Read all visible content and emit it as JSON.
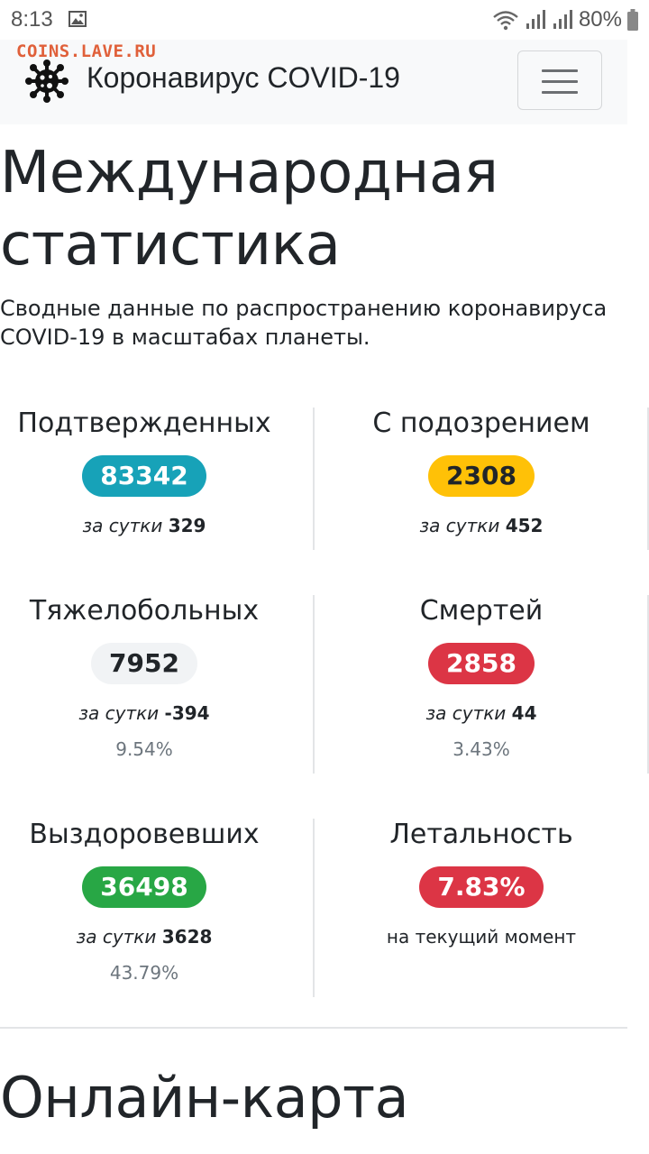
{
  "status_bar": {
    "time": "8:13",
    "battery": "80%"
  },
  "watermark": "COINS.LAVE.RU",
  "navbar": {
    "brand": "Коронавирус COVID-19"
  },
  "page": {
    "title_line1": "Международная",
    "title_line2": "статистика",
    "lead_line1": "Сводные данные по распространению коронавируса",
    "lead_line2": "COVID-19 в масштабах планеты."
  },
  "stats": {
    "confirmed": {
      "title": "Подтвержденных",
      "value": "83342",
      "delta_label": "за сутки",
      "delta": "329"
    },
    "suspected": {
      "title": "С подозрением",
      "value": "2308",
      "delta_label": "за сутки",
      "delta": "452"
    },
    "severe": {
      "title": "Тяжелобольных",
      "value": "7952",
      "delta_label": "за сутки",
      "delta": "-394",
      "percent": "9.54%"
    },
    "deaths": {
      "title": "Смертей",
      "value": "2858",
      "delta_label": "за сутки",
      "delta": "44",
      "percent": "3.43%"
    },
    "recovered": {
      "title": "Выздоровевших",
      "value": "36498",
      "delta_label": "за сутки",
      "delta": "3628",
      "percent": "43.79%"
    },
    "lethality": {
      "title": "Летальность",
      "value": "7.83%",
      "note": "на текущий момент"
    }
  },
  "section2": {
    "title": "Онлайн-карта"
  },
  "colors": {
    "info": "#17a2b8",
    "warning": "#ffc107",
    "danger": "#dc3545",
    "success": "#28a745",
    "light": "#f1f3f5"
  },
  "icons": {
    "brand": "virus-icon",
    "menu": "hamburger-icon",
    "status": [
      "image-icon",
      "wifi-icon",
      "signal-icon",
      "battery-icon"
    ]
  }
}
